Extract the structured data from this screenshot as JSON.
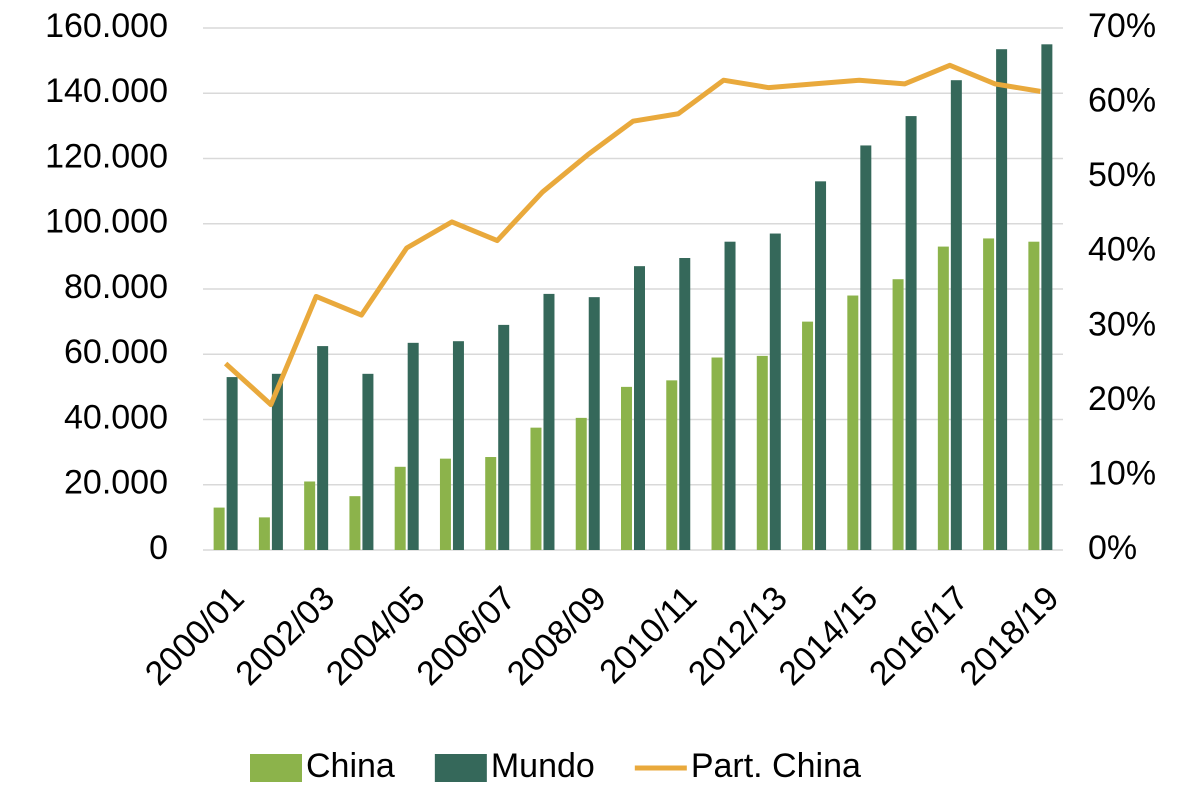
{
  "chart_data": {
    "type": "bar",
    "categories": [
      "2000/01",
      null,
      "2002/03",
      null,
      "2004/05",
      null,
      "2006/07",
      null,
      "2008/09",
      null,
      "2010/11",
      null,
      "2012/13",
      null,
      "2014/15",
      null,
      "2016/17",
      null,
      "2018/19"
    ],
    "series": [
      {
        "name": "China",
        "color": "#8cb34b",
        "values": [
          13000,
          10000,
          21000,
          16500,
          25500,
          28000,
          28500,
          37500,
          40500,
          50000,
          52000,
          59000,
          59500,
          70000,
          78000,
          83000,
          93000,
          95500,
          94500
        ]
      },
      {
        "name": "Mundo",
        "color": "#35685a",
        "values": [
          53000,
          54000,
          62500,
          54000,
          63500,
          64000,
          69000,
          78500,
          77500,
          87000,
          89500,
          94500,
          97000,
          113000,
          124000,
          133000,
          144000,
          153500,
          155000
        ]
      },
      {
        "name": "Part. China",
        "color": "#e9a93c",
        "type": "line",
        "axis": "y2",
        "values": [
          25,
          19.5,
          34,
          31.5,
          40.5,
          44,
          41.5,
          48,
          53,
          57.5,
          58.5,
          63,
          62,
          62.5,
          63,
          62.5,
          65,
          62.5,
          61.5
        ]
      }
    ],
    "ylim": [
      0,
      160000
    ],
    "yticks": [
      0,
      {
        "value": 20000,
        "label": "20.000"
      },
      {
        "value": 40000,
        "label": "40.000"
      },
      {
        "value": 60000,
        "label": "60.000"
      },
      {
        "value": 80000,
        "label": "80.000"
      },
      {
        "value": 100000,
        "label": "100.000"
      },
      {
        "value": 120000,
        "label": "120.000"
      },
      {
        "value": 140000,
        "label": "140.000"
      },
      {
        "value": 160000,
        "label": "160.000"
      }
    ],
    "y2lim": [
      0,
      70
    ],
    "y2ticks": [
      {
        "value": 0,
        "label": "0%"
      },
      {
        "value": 10,
        "label": "10%"
      },
      {
        "value": 20,
        "label": "20%"
      },
      {
        "value": 30,
        "label": "30%"
      },
      {
        "value": 40,
        "label": "40%"
      },
      {
        "value": 50,
        "label": "50%"
      },
      {
        "value": 60,
        "label": "60%"
      },
      {
        "value": 70,
        "label": "70%"
      }
    ],
    "grid": true,
    "legend": "bottom"
  }
}
